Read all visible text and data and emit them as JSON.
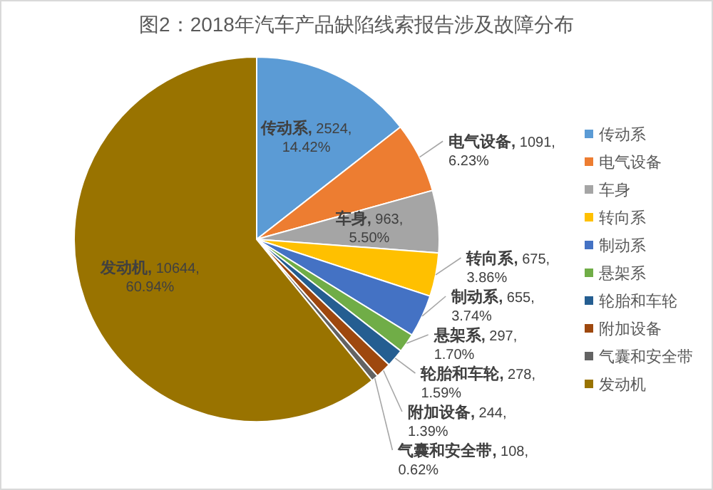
{
  "chart_data": {
    "type": "pie",
    "title": "图2：2018年汽车产品缺陷线索报告涉及故障分布",
    "categories": [
      "传动系",
      "电气设备",
      "车身",
      "转向系",
      "制动系",
      "悬架系",
      "轮胎和车轮",
      "附加设备",
      "气囊和安全带",
      "发动机"
    ],
    "values": [
      2524,
      1091,
      963,
      675,
      655,
      297,
      278,
      244,
      108,
      10644
    ],
    "value_labels": [
      "传动系, 2524, 14.42%",
      "电气设备, 1091, 6.23%",
      "车身, 963, 5.50%",
      "转向系, 675, 3.86%",
      "制动系, 655, 3.74%",
      "悬架系, 297, 1.70%",
      "轮胎和车轮, 278, 1.59%",
      "附加设备, 244, 1.39%",
      "气囊和安全带, 108, 0.62%",
      "发动机, 10644, 60.94%"
    ],
    "colors": [
      "#5b9bd5",
      "#ed7d31",
      "#a5a5a5",
      "#ffc000",
      "#4472c4",
      "#70ad47",
      "#255e91",
      "#9e480e",
      "#636363",
      "#997300"
    ],
    "legend": "right"
  }
}
